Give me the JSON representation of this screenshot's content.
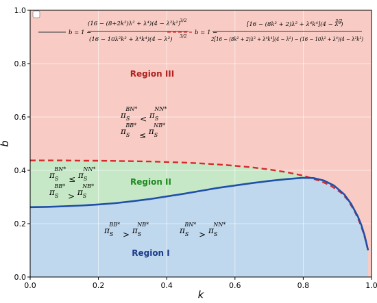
{
  "chart_data": {
    "type": "area",
    "xlabel": "k",
    "ylabel": "b",
    "xlim": [
      0.0,
      1.0
    ],
    "ylim": [
      0.0,
      1.0
    ],
    "xticks": [
      "0.0",
      "0.2",
      "0.4",
      "0.6",
      "0.8",
      "1.0"
    ],
    "yticks": [
      "0.0",
      "0.2",
      "0.4",
      "0.6",
      "0.8",
      "1.0"
    ],
    "grid": true,
    "legend_position": "top",
    "series": [
      {
        "name": "b = 1 − (16 − (8+2k²)λ² + λ⁴)(4 − λ²k²)^(3/2) / ((16 − 10λ²k² + λ⁴k⁴)(4 − λ²)^(3/2))",
        "style": "solid",
        "color": "#1f4fa8",
        "x": [
          0.0,
          0.05,
          0.1,
          0.15,
          0.2,
          0.25,
          0.3,
          0.35,
          0.4,
          0.45,
          0.5,
          0.55,
          0.6,
          0.65,
          0.7,
          0.75,
          0.8,
          0.83,
          0.86,
          0.89,
          0.92,
          0.94,
          0.96,
          0.97,
          0.98,
          0.99
        ],
        "y": [
          0.262,
          0.263,
          0.265,
          0.268,
          0.272,
          0.277,
          0.284,
          0.292,
          0.302,
          0.312,
          0.323,
          0.334,
          0.343,
          0.352,
          0.36,
          0.367,
          0.372,
          0.371,
          0.362,
          0.343,
          0.31,
          0.275,
          0.227,
          0.195,
          0.155,
          0.1
        ]
      },
      {
        "name": "b = 1 − [16 − (8k²+2)λ² + λ⁴k⁴](4 − λ²)^(3/2) / (2[16 − (8k²+2)λ² + λ⁴k⁴](4 − λ²)^(3/2) − (16 − 10λ² + λ⁴)(4 − λ²k²)^(3/2))",
        "style": "dashed",
        "color": "#d42a2a",
        "x": [
          0.0,
          0.05,
          0.1,
          0.15,
          0.2,
          0.25,
          0.3,
          0.35,
          0.4,
          0.45,
          0.5,
          0.55,
          0.6,
          0.65,
          0.7,
          0.75,
          0.8,
          0.85,
          0.88,
          0.91,
          0.93,
          0.95,
          0.96,
          0.97,
          0.98,
          0.99
        ],
        "y": [
          0.437,
          0.437,
          0.437,
          0.436,
          0.436,
          0.435,
          0.434,
          0.433,
          0.431,
          0.429,
          0.426,
          0.422,
          0.417,
          0.411,
          0.403,
          0.393,
          0.38,
          0.36,
          0.343,
          0.317,
          0.29,
          0.248,
          0.22,
          0.19,
          0.15,
          0.1
        ]
      }
    ],
    "regions": [
      {
        "name": "Region I",
        "color": "#c0d8ee",
        "label_color": "#1a3a8a"
      },
      {
        "name": "Region II",
        "color": "#c6e8c6",
        "label_color": "#1e8a1e"
      },
      {
        "name": "Region III",
        "color": "#f8ccc4",
        "label_color": "#b02020"
      }
    ],
    "annotations": [
      {
        "base": "π",
        "sub": "S",
        "sup": "BN*",
        "op": "<",
        "base2": "π",
        "sub2": "S",
        "sup2": "NN*"
      },
      {
        "base": "π",
        "sub": "S",
        "sup": "BB*",
        "op": "≤",
        "base2": "π",
        "sub2": "S",
        "sup2": "NB*"
      },
      {
        "base": "π",
        "sub": "S",
        "sup": "BN*",
        "op": "≤",
        "base2": "π",
        "sub2": "S",
        "sup2": "NN*"
      },
      {
        "base": "π",
        "sub": "S",
        "sup": "BB*",
        "op": ">",
        "base2": "π",
        "sub2": "S",
        "sup2": "NB*"
      },
      {
        "base": "π",
        "sub": "S",
        "sup": "BB*",
        "op": ">",
        "base2": "π",
        "sub2": "S",
        "sup2": "NB*"
      },
      {
        "base": "π",
        "sub": "S",
        "sup": "BN*",
        "op": ">",
        "base2": "π",
        "sub2": "S",
        "sup2": "NN*"
      }
    ],
    "legend": {
      "solid_lhs": "b = 1 −",
      "solid_num": "(16 − (8+2k²)λ² + λ⁴)(4 − λ²k²)",
      "solid_den": "(16 − 10λ²k² + λ⁴k⁴)(4 − λ²)",
      "dashed_lhs": "b = 1 −",
      "dashed_num": "[16 − (8k² + 2)λ² + λ⁴k⁴](4 − λ²)",
      "dashed_den": "2[16 − (8k² + 2)λ² + λ⁴k⁴](4 − λ²)   − (16 − 10λ² + λ⁴)(4 − λ²k²)",
      "exponent": "3/2"
    }
  }
}
